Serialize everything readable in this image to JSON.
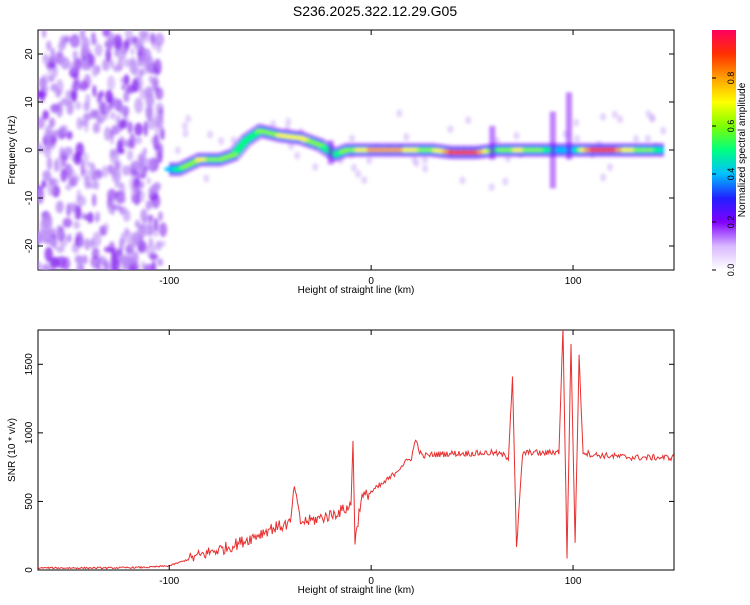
{
  "title": "S236.2025.322.12.29.G05",
  "chart_data": [
    {
      "type": "heatmap",
      "xlabel": "Height of straight line (km)",
      "ylabel": "Frequency (Hz)",
      "xlim": [
        -165,
        150
      ],
      "ylim": [
        -25,
        25
      ],
      "xticks": [
        -100,
        0,
        100
      ],
      "yticks": [
        -20,
        -10,
        0,
        10,
        20
      ],
      "colorbar": {
        "label": "Normalized spectral amplitude",
        "range": [
          0,
          1
        ],
        "ticks": [
          "0.0",
          "0.2",
          "0.4",
          "0.6",
          "0.8"
        ],
        "colors": [
          "#ffffff",
          "#d8b8ff",
          "#8000ff",
          "#2020ff",
          "#00c0ff",
          "#00ff80",
          "#80ff00",
          "#ffff00",
          "#ffa000",
          "#ff3000",
          "#ff0060"
        ]
      },
      "ridge": [
        {
          "x": -100,
          "y": -4,
          "a": 0.35
        },
        {
          "x": -95,
          "y": -4,
          "a": 0.5
        },
        {
          "x": -85,
          "y": -2,
          "a": 0.7
        },
        {
          "x": -75,
          "y": -2,
          "a": 0.6
        },
        {
          "x": -68,
          "y": -1,
          "a": 0.55
        },
        {
          "x": -62,
          "y": 2,
          "a": 0.5
        },
        {
          "x": -55,
          "y": 4,
          "a": 0.55
        },
        {
          "x": -45,
          "y": 3,
          "a": 0.65
        },
        {
          "x": -35,
          "y": 2.5,
          "a": 0.7
        },
        {
          "x": -25,
          "y": 1,
          "a": 0.55
        },
        {
          "x": -18,
          "y": -1,
          "a": 0.45
        },
        {
          "x": -12,
          "y": 0,
          "a": 0.6
        },
        {
          "x": 0,
          "y": 0,
          "a": 0.75
        },
        {
          "x": 10,
          "y": 0,
          "a": 0.8
        },
        {
          "x": 20,
          "y": 0,
          "a": 0.7
        },
        {
          "x": 30,
          "y": 0,
          "a": 0.6
        },
        {
          "x": 40,
          "y": -0.5,
          "a": 0.85
        },
        {
          "x": 52,
          "y": -0.5,
          "a": 0.9
        },
        {
          "x": 62,
          "y": 0,
          "a": 0.5
        },
        {
          "x": 72,
          "y": 0,
          "a": 0.7
        },
        {
          "x": 82,
          "y": 0,
          "a": 0.6
        },
        {
          "x": 92,
          "y": 0,
          "a": 0.4
        },
        {
          "x": 100,
          "y": 0,
          "a": 0.4
        },
        {
          "x": 110,
          "y": 0,
          "a": 0.9
        },
        {
          "x": 120,
          "y": 0,
          "a": 0.85
        },
        {
          "x": 132,
          "y": 0,
          "a": 0.6
        },
        {
          "x": 145,
          "y": 0,
          "a": 0.5
        }
      ]
    },
    {
      "type": "line",
      "xlabel": "Height of straight line (km)",
      "ylabel": "SNR (10 * v/v)",
      "xlim": [
        -165,
        150
      ],
      "ylim": [
        0,
        1750
      ],
      "xticks": [
        -100,
        0,
        100
      ],
      "yticks": [
        0,
        500,
        1000,
        1500
      ],
      "line_color": "#e83030",
      "series": [
        {
          "name": "SNR",
          "x": [
            -165,
            -150,
            -130,
            -110,
            -100,
            -90,
            -80,
            -70,
            -60,
            -50,
            -45,
            -40,
            -38,
            -35,
            -30,
            -25,
            -20,
            -15,
            -10,
            -9,
            -8,
            -5,
            0,
            5,
            10,
            15,
            20,
            22,
            25,
            30,
            40,
            50,
            60,
            65,
            68,
            70,
            72,
            75,
            80,
            85,
            90,
            93,
            95,
            97,
            99,
            101,
            103,
            105,
            110,
            120,
            130,
            140,
            150
          ],
          "y": [
            15,
            15,
            15,
            20,
            30,
            80,
            130,
            170,
            230,
            300,
            320,
            340,
            620,
            350,
            360,
            380,
            400,
            430,
            470,
            950,
            200,
            520,
            570,
            620,
            680,
            760,
            820,
            950,
            830,
            840,
            850,
            850,
            855,
            840,
            820,
            1420,
            150,
            850,
            860,
            850,
            860,
            860,
            1750,
            100,
            1650,
            200,
            1550,
            860,
            840,
            830,
            820,
            820,
            820
          ]
        }
      ]
    }
  ]
}
